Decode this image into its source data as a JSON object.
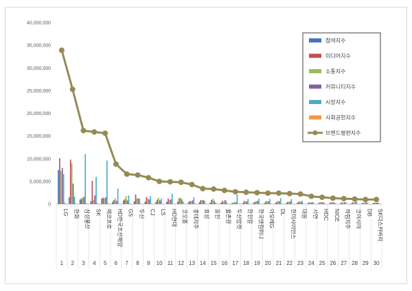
{
  "chart_data": {
    "type": "bar",
    "combo": "bar+line",
    "ylim": [
      0,
      40000000
    ],
    "yticks": [
      "0",
      "5,000,000",
      "10,000,000",
      "15,000,000",
      "20,000,000",
      "25,000,000",
      "30,000,000",
      "35,000,000",
      "40,000,000"
    ],
    "ytick_values": [
      0,
      5000000,
      10000000,
      15000000,
      20000000,
      25000000,
      30000000,
      35000000,
      40000000
    ],
    "grid": false,
    "legend_position": "top-right",
    "categories": [
      "LG",
      "한화",
      "삼성물산",
      "SK",
      "에코프로",
      "HD한국조선해양",
      "GS",
      "두산",
      "CJ",
      "LS",
      "HD현대",
      "코오롱",
      "롯데지주",
      "효성",
      "웅진",
      "율촌원",
      "두산밥캣",
      "한진칼",
      "한국앤컴퍼니",
      "아모레G",
      "DL",
      "한미사이언스",
      "대웅",
      "서연",
      "HDC",
      "NICE",
      "하림지주",
      "코아시아",
      "DB",
      "SK디스커버리"
    ],
    "ranks": [
      "1",
      "2",
      "3",
      "4",
      "5",
      "6",
      "7",
      "8",
      "9",
      "10",
      "11",
      "12",
      "13",
      "14",
      "15",
      "16",
      "17",
      "18",
      "19",
      "20",
      "21",
      "22",
      "23",
      "24",
      "25",
      "26",
      "27",
      "28",
      "29",
      "30"
    ],
    "series": [
      {
        "name": "참여지수",
        "type": "bar",
        "color": "#4472c4",
        "values": [
          7500000,
          1500000,
          1000000,
          600000,
          1200000,
          500000,
          800000,
          600000,
          500000,
          500000,
          500000,
          500000,
          400000,
          400000,
          300000,
          300000,
          200000,
          200000,
          300000,
          200000,
          200000,
          200000,
          200000,
          200000,
          200000,
          150000,
          150000,
          150000,
          150000,
          150000
        ]
      },
      {
        "name": "미디어지수",
        "type": "bar",
        "color": "#c0504d",
        "values": [
          10100000,
          9800000,
          1200000,
          5100000,
          1400000,
          900000,
          1100000,
          2100000,
          1500000,
          1000000,
          1200000,
          1300000,
          700000,
          900000,
          900000,
          700000,
          300000,
          700000,
          500000,
          600000,
          500000,
          500000,
          500000,
          400000,
          400000,
          400000,
          400000,
          400000,
          300000,
          300000
        ]
      },
      {
        "name": "소통지수",
        "type": "bar",
        "color": "#9bbb59",
        "values": [
          7300000,
          9000000,
          1500000,
          900000,
          1300000,
          1300000,
          1800000,
          1300000,
          1200000,
          1400000,
          900000,
          1400000,
          600000,
          800000,
          1200000,
          500000,
          500000,
          500000,
          600000,
          600000,
          700000,
          500000,
          600000,
          300000,
          400000,
          400000,
          300000,
          300000,
          300000,
          300000
        ]
      },
      {
        "name": "커뮤니티지수",
        "type": "bar",
        "color": "#8064a2",
        "values": [
          8000000,
          4500000,
          1600000,
          1900000,
          1500000,
          700000,
          800000,
          1200000,
          1000000,
          800000,
          1000000,
          1100000,
          800000,
          900000,
          700000,
          900000,
          400000,
          600000,
          700000,
          600000,
          600000,
          600000,
          500000,
          400000,
          400000,
          400000,
          400000,
          400000,
          400000,
          300000
        ]
      },
      {
        "name": "시장지수",
        "type": "bar",
        "color": "#4bacc6",
        "values": [
          6600000,
          1600000,
          11000000,
          6000000,
          9600000,
          3400000,
          1900000,
          1200000,
          1700000,
          1200000,
          2300000,
          600000,
          1500000,
          700000,
          300000,
          600000,
          2100000,
          1100000,
          1200000,
          1100000,
          1300000,
          1100000,
          700000,
          400000,
          300000,
          300000,
          400000,
          700000,
          300000,
          300000
        ]
      },
      {
        "name": "사회공헌지수",
        "type": "bar",
        "color": "#f79646",
        "values": [
          300000,
          200000,
          200000,
          300000,
          200000,
          100000,
          200000,
          100000,
          100000,
          100000,
          100000,
          100000,
          200000,
          100000,
          100000,
          100000,
          100000,
          100000,
          100000,
          100000,
          100000,
          100000,
          100000,
          100000,
          100000,
          100000,
          100000,
          100000,
          100000,
          100000
        ]
      },
      {
        "name": "브랜드평판지수",
        "type": "line",
        "color": "#948a54",
        "values": [
          33900000,
          25300000,
          16200000,
          15900000,
          15600000,
          8800000,
          6600000,
          6400000,
          5800000,
          5000000,
          4900000,
          4800000,
          4300000,
          3400000,
          3300000,
          3000000,
          2700000,
          2600000,
          2500000,
          2400000,
          2400000,
          2300000,
          2200000,
          1700000,
          1500000,
          1300000,
          1200000,
          1100000,
          1000000,
          1000000
        ]
      }
    ]
  }
}
